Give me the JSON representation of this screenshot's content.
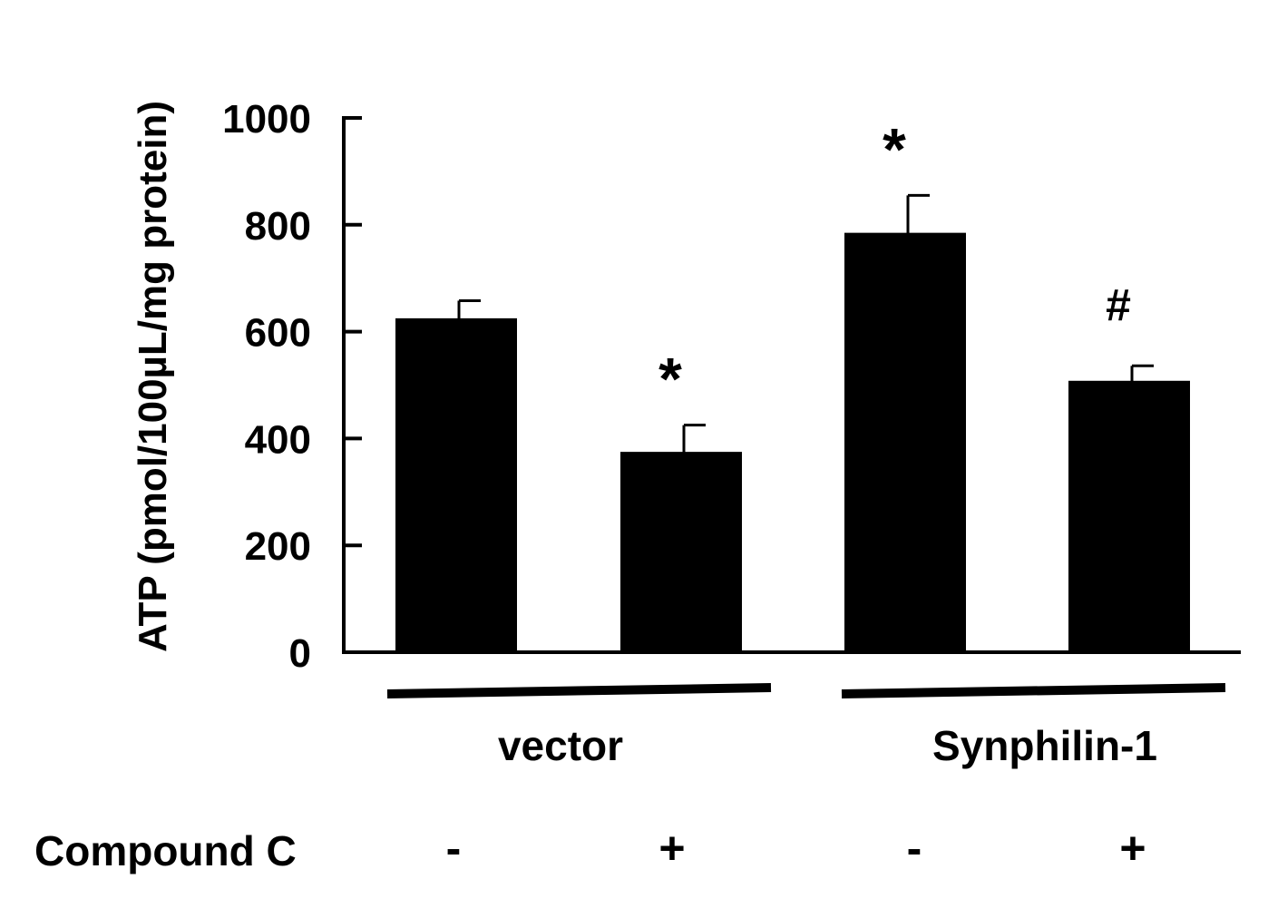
{
  "chart_data": {
    "type": "bar",
    "ylabel": "ATP (pmol/100µL/mg protein)",
    "ylim": [
      0,
      1000
    ],
    "yticks": [
      0,
      200,
      400,
      600,
      800,
      1000
    ],
    "categories": [
      "vector / -",
      "vector / +",
      "Synphilin-1 / -",
      "Synphilin-1 / +"
    ],
    "values": [
      625,
      375,
      785,
      508
    ],
    "errors": [
      33,
      50,
      70,
      28
    ],
    "annotations": [
      "",
      "*",
      "*",
      "#"
    ],
    "groups": [
      {
        "label": "vector",
        "bars": [
          0,
          1
        ]
      },
      {
        "label": "Synphilin-1",
        "bars": [
          2,
          3
        ]
      }
    ],
    "treatment": {
      "label": "Compound C",
      "values": [
        "-",
        "+",
        "-",
        "+"
      ]
    },
    "bar_color": "#000000",
    "grid": false,
    "legend": "none"
  }
}
